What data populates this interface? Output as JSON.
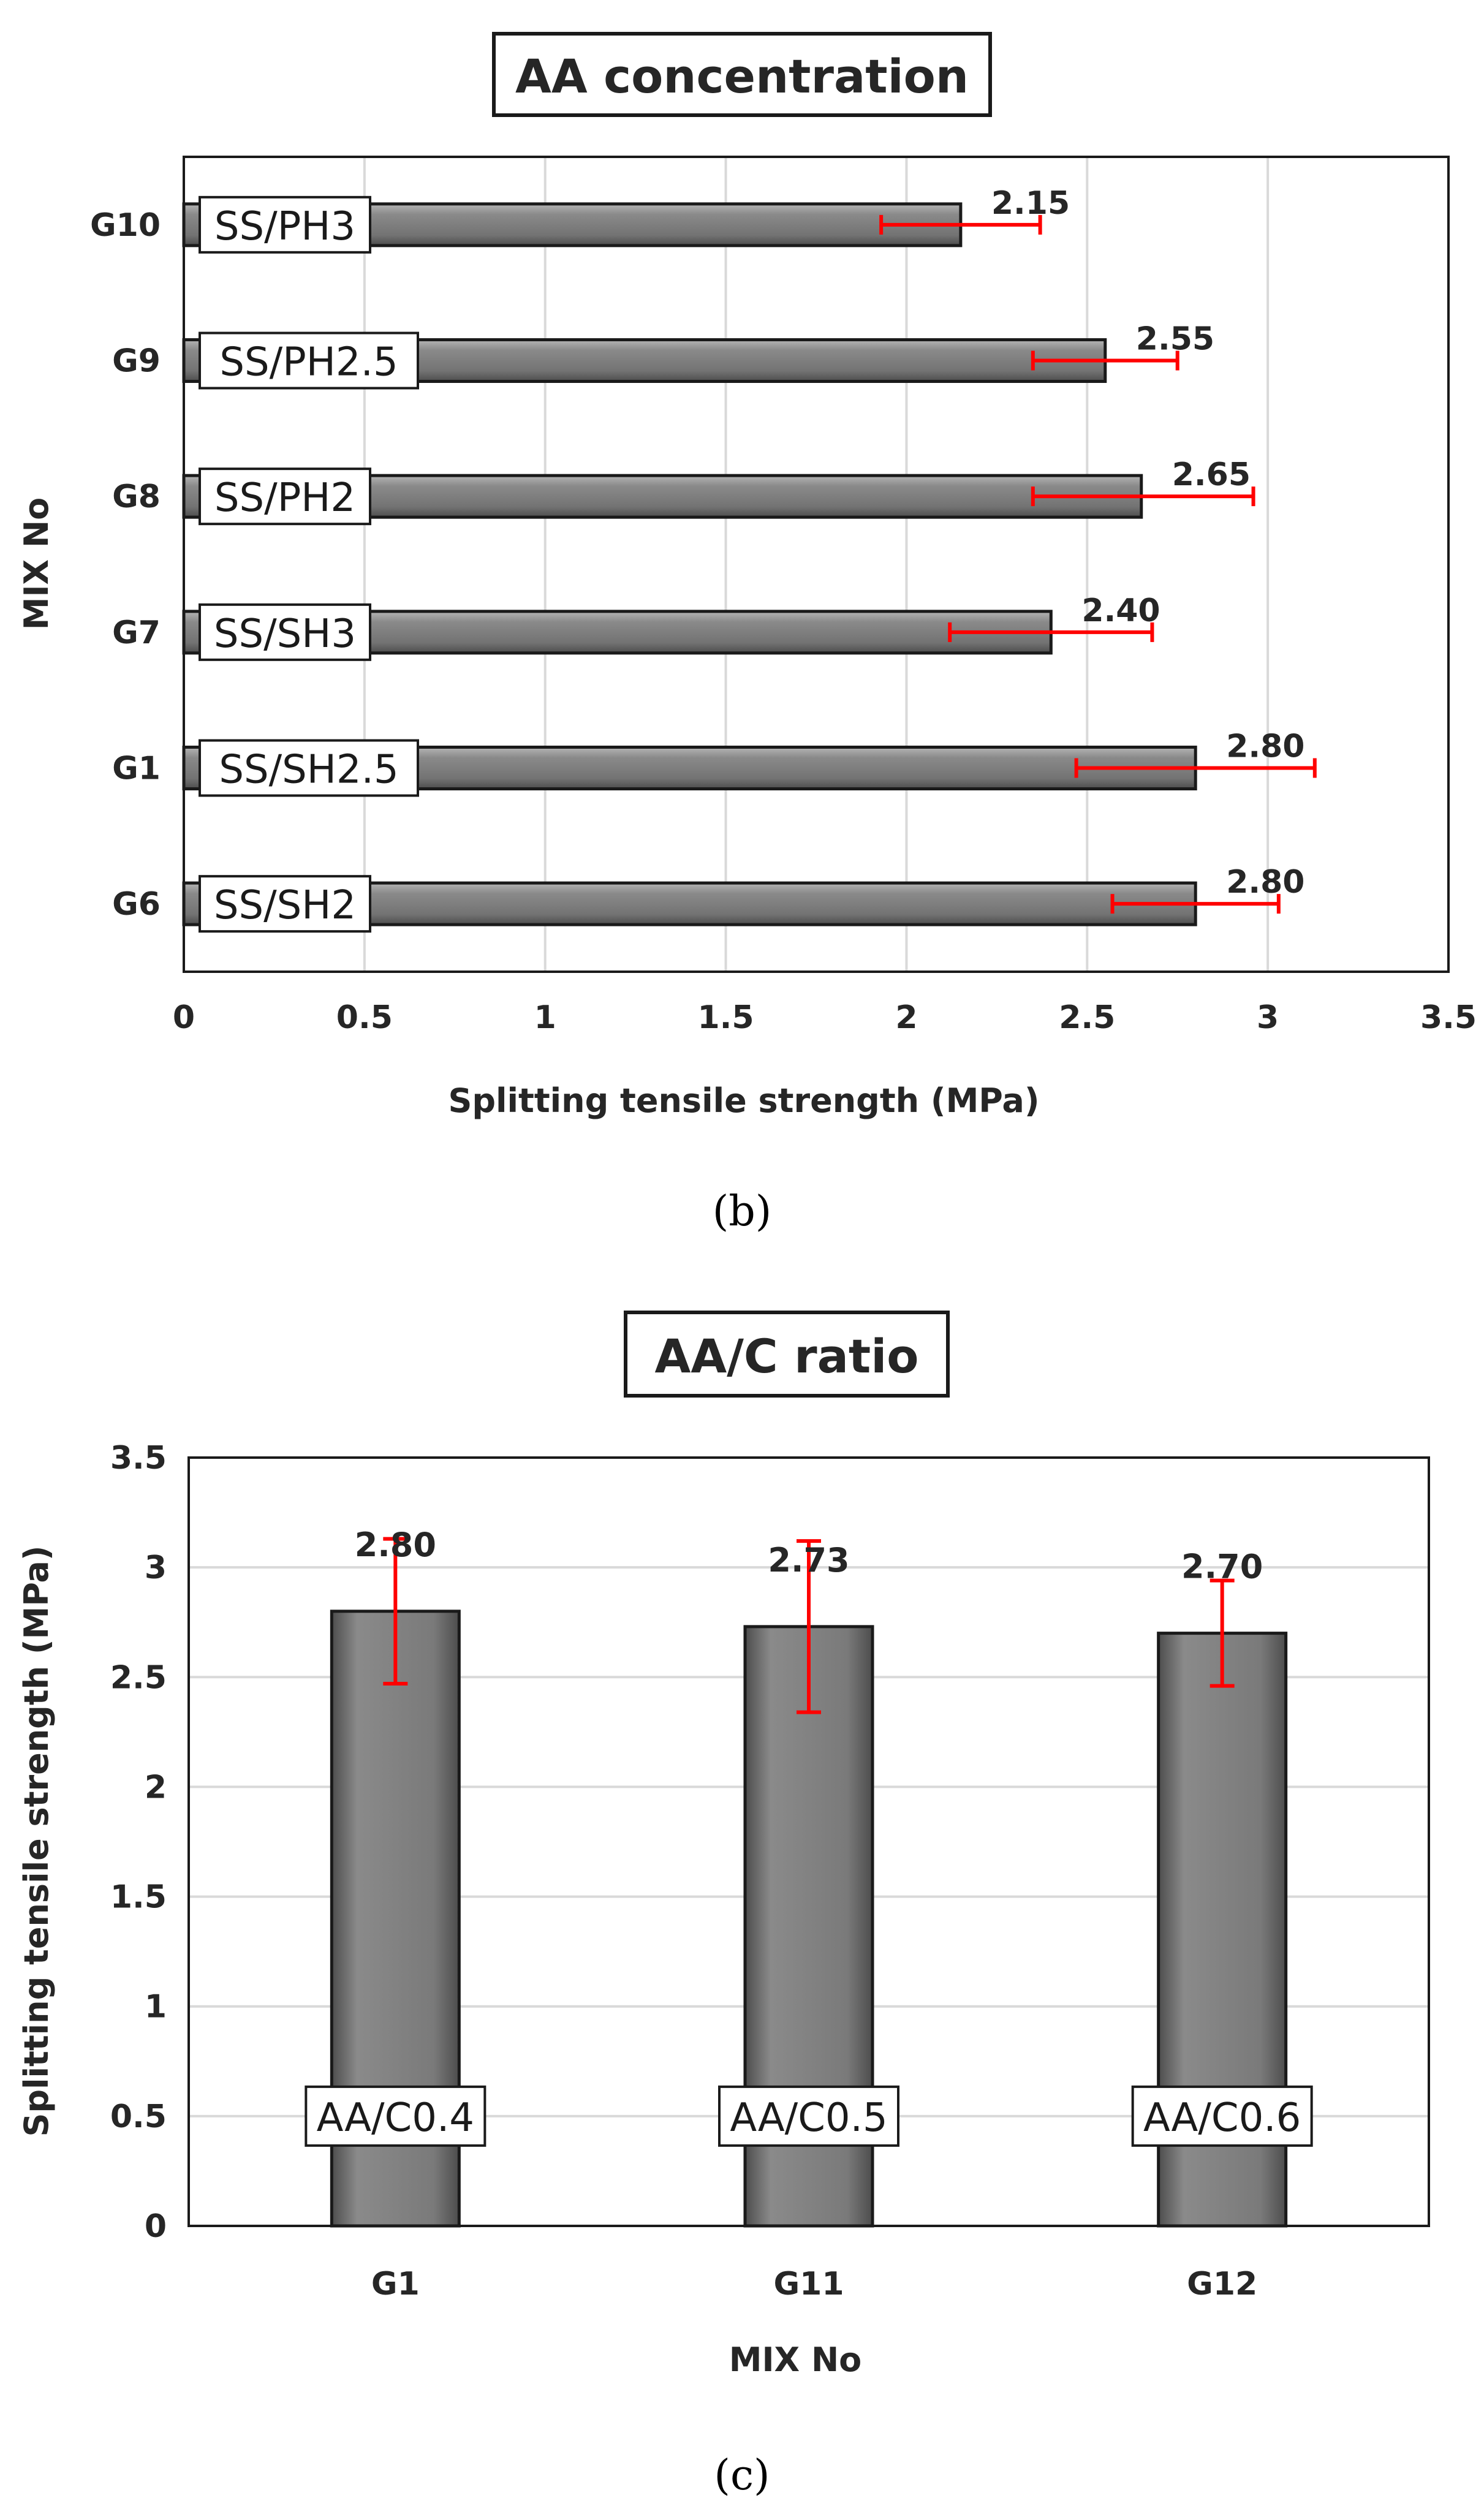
{
  "chart_data": [
    {
      "panel_label": "(b)",
      "type": "bar",
      "orientation": "horizontal",
      "title": "AA concentration",
      "xlabel": "Splitting tensile strength (MPa)",
      "ylabel": "MIX No",
      "xlim": [
        0,
        3.5
      ],
      "x_ticks": [
        "0",
        "0.5",
        "1",
        "1.5",
        "2",
        "2.5",
        "3",
        "3.5"
      ],
      "x_tick_values": [
        0,
        0.5,
        1,
        1.5,
        2,
        2.5,
        3,
        3.5
      ],
      "grid": "vertical",
      "categories": [
        "G10",
        "G9",
        "G8",
        "G7",
        "G1",
        "G6"
      ],
      "bar_tags": [
        "SS/PH3",
        "SS/PH2.5",
        "SS/PH2",
        "SS/SH3",
        "SS/SH2.5",
        "SS/SH2"
      ],
      "values": [
        2.15,
        2.55,
        2.65,
        2.4,
        2.8,
        2.8
      ],
      "value_labels": [
        "2.15",
        "2.55",
        "2.65",
        "2.40",
        "2.80",
        "2.80"
      ],
      "error_low": [
        1.93,
        2.35,
        2.35,
        2.12,
        2.47,
        2.57
      ],
      "error_high": [
        2.37,
        2.75,
        2.96,
        2.68,
        3.13,
        3.03
      ]
    },
    {
      "panel_label": "(c)",
      "type": "bar",
      "orientation": "vertical",
      "title": "AA/C ratio",
      "xlabel": "MIX No",
      "ylabel": "Splitting tensile strength (MPa)",
      "ylim": [
        0,
        3.5
      ],
      "y_ticks": [
        "0",
        "0.5",
        "1",
        "1.5",
        "2",
        "2.5",
        "3",
        "3.5"
      ],
      "y_tick_values": [
        0,
        0.5,
        1,
        1.5,
        2,
        2.5,
        3,
        3.5
      ],
      "grid": "horizontal",
      "categories": [
        "G1",
        "G11",
        "G12"
      ],
      "bar_tags": [
        "AA/C0.4",
        "AA/C0.5",
        "AA/C0.6"
      ],
      "values": [
        2.8,
        2.73,
        2.7
      ],
      "value_labels": [
        "2.80",
        "2.73",
        "2.70"
      ],
      "error_low": [
        2.47,
        2.34,
        2.46
      ],
      "error_high": [
        3.13,
        3.12,
        2.94
      ]
    }
  ],
  "colors": {
    "bar_fill": "#7f7f7f",
    "bar_edge": "#1a1a1a",
    "error_bar": "#ff0000",
    "grid": "#d9d9d9",
    "axis_frame": "#1a1a1a",
    "text": "#262626"
  }
}
